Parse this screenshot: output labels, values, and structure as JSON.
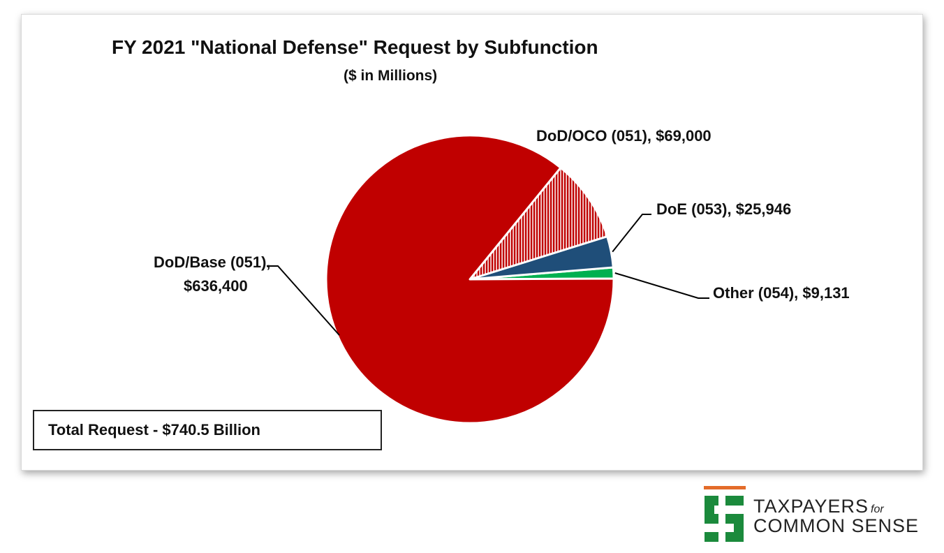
{
  "chart_data": {
    "type": "pie",
    "title": "FY 2021 \"National Defense\" Request by Subfunction",
    "subtitle": "($ in Millions)",
    "slices": [
      {
        "name": "DoD/Base (051)",
        "value": 636400,
        "label_line1": "DoD/Base (051),",
        "label_line2": "$636,400",
        "color": "#c00000",
        "pattern": "solid"
      },
      {
        "name": "DoD/OCO (051)",
        "value": 69000,
        "label_line1": "DoD/OCO (051), $69,000",
        "color": "#c00000",
        "pattern": "vertical-stripes"
      },
      {
        "name": "DoE (053)",
        "value": 25946,
        "label_line1": "DoE (053), $25,946",
        "color": "#1f4e79",
        "pattern": "solid"
      },
      {
        "name": "Other (054)",
        "value": 9131,
        "label_line1": "Other (054), $9,131",
        "color": "#00b050",
        "pattern": "solid"
      }
    ],
    "annotation": "Total Request - $740.5 Billion"
  },
  "logo": {
    "line1": "TAXPAYERS",
    "line1_small": "for",
    "line2": "COMMON SENSE",
    "bar_color": "#e36c2a",
    "mark_color": "#1b8a3c",
    "mark_icon": "dollar-sign-icon"
  }
}
